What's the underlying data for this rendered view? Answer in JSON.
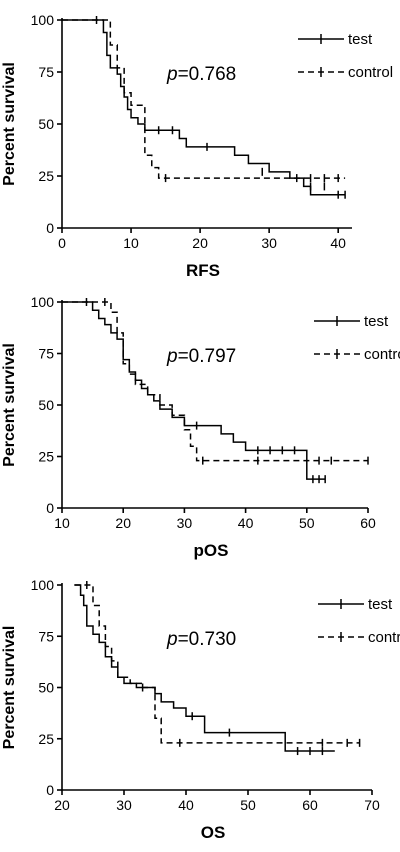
{
  "chart_data": [
    {
      "type": "line",
      "subtype": "kaplan-meier",
      "xlabel": "RFS",
      "ylabel": "Percent survival",
      "xlim": [
        0,
        42
      ],
      "ylim": [
        0,
        100
      ],
      "xticks": [
        0,
        10,
        20,
        30,
        40
      ],
      "yticks": [
        0,
        25,
        50,
        75,
        100
      ],
      "annotation": {
        "prefix": "p",
        "text": "=0.768"
      },
      "legend": {
        "placement": "top-right"
      },
      "series": [
        {
          "name": "test",
          "style": "solid",
          "steps": [
            [
              0,
              100
            ],
            [
              5,
              100
            ],
            [
              6,
              94
            ],
            [
              6.5,
              83
            ],
            [
              7,
              77
            ],
            [
              8,
              74
            ],
            [
              8.5,
              68
            ],
            [
              9,
              63
            ],
            [
              9.5,
              57
            ],
            [
              10,
              53
            ],
            [
              11,
              50
            ],
            [
              12,
              47
            ],
            [
              17,
              43
            ],
            [
              18,
              39
            ],
            [
              25,
              35
            ],
            [
              27,
              31
            ],
            [
              30,
              27
            ],
            [
              33,
              24
            ],
            [
              35,
              20
            ],
            [
              36,
              16
            ],
            [
              41,
              16
            ]
          ],
          "censored": [
            [
              5,
              100
            ],
            [
              14,
              47
            ],
            [
              16,
              47
            ],
            [
              21,
              39
            ],
            [
              29,
              27
            ],
            [
              36,
              20
            ],
            [
              38,
              20
            ],
            [
              40,
              16
            ],
            [
              41,
              16
            ]
          ]
        },
        {
          "name": "control",
          "style": "dashed",
          "steps": [
            [
              0,
              100
            ],
            [
              6,
              100
            ],
            [
              7,
              88
            ],
            [
              8,
              77
            ],
            [
              9,
              65
            ],
            [
              10,
              59
            ],
            [
              12,
              35
            ],
            [
              13,
              29
            ],
            [
              14,
              24
            ],
            [
              41,
              24
            ]
          ],
          "censored": [
            [
              15,
              24
            ],
            [
              34,
              24
            ],
            [
              36,
              24
            ],
            [
              38,
              24
            ],
            [
              40,
              24
            ]
          ]
        }
      ]
    },
    {
      "type": "line",
      "subtype": "kaplan-meier",
      "xlabel": "pOS",
      "ylabel": "Percent survival",
      "xlim": [
        10,
        60
      ],
      "ylim": [
        0,
        100
      ],
      "xticks": [
        10,
        20,
        30,
        40,
        50,
        60
      ],
      "yticks": [
        0,
        25,
        50,
        75,
        100
      ],
      "annotation": {
        "prefix": "p",
        "text": "=0.797"
      },
      "legend": {
        "placement": "top-right"
      },
      "series": [
        {
          "name": "test",
          "style": "solid",
          "steps": [
            [
              10,
              100
            ],
            [
              14,
              100
            ],
            [
              15,
              96
            ],
            [
              16,
              92
            ],
            [
              17,
              89
            ],
            [
              18,
              85
            ],
            [
              19,
              82
            ],
            [
              20,
              72
            ],
            [
              21,
              66
            ],
            [
              22,
              62
            ],
            [
              23,
              58
            ],
            [
              24,
              55
            ],
            [
              25,
              52
            ],
            [
              26,
              48
            ],
            [
              28,
              44
            ],
            [
              30,
              40
            ],
            [
              36,
              36
            ],
            [
              38,
              32
            ],
            [
              40,
              28
            ],
            [
              50,
              14
            ],
            [
              53,
              14
            ]
          ],
          "censored": [
            [
              14,
              100
            ],
            [
              20,
              75
            ],
            [
              32,
              40
            ],
            [
              42,
              28
            ],
            [
              44,
              28
            ],
            [
              46,
              28
            ],
            [
              48,
              28
            ],
            [
              51,
              14
            ],
            [
              52,
              14
            ],
            [
              53,
              14
            ]
          ]
        },
        {
          "name": "control",
          "style": "dashed",
          "steps": [
            [
              10,
              100
            ],
            [
              17,
              100
            ],
            [
              18,
              95
            ],
            [
              19,
              85
            ],
            [
              20,
              70
            ],
            [
              21,
              65
            ],
            [
              22,
              60
            ],
            [
              24,
              55
            ],
            [
              26,
              50
            ],
            [
              28,
              45
            ],
            [
              30,
              38
            ],
            [
              31,
              30
            ],
            [
              32,
              23
            ],
            [
              60,
              23
            ]
          ],
          "censored": [
            [
              17,
              100
            ],
            [
              33,
              23
            ],
            [
              42,
              23
            ],
            [
              52,
              23
            ],
            [
              54,
              23
            ],
            [
              60,
              23
            ]
          ]
        }
      ]
    },
    {
      "type": "line",
      "subtype": "kaplan-meier",
      "xlabel": "OS",
      "ylabel": "Percent survival",
      "xlim": [
        20,
        70
      ],
      "ylim": [
        0,
        100
      ],
      "xticks": [
        20,
        30,
        40,
        50,
        60,
        70
      ],
      "yticks": [
        0,
        25,
        50,
        75,
        100
      ],
      "annotation": {
        "prefix": "p",
        "text": "=0.730"
      },
      "legend": {
        "placement": "top-right"
      },
      "series": [
        {
          "name": "test",
          "style": "solid",
          "steps": [
            [
              22,
              100
            ],
            [
              23,
              95
            ],
            [
              23.5,
              90
            ],
            [
              24,
              80
            ],
            [
              25,
              76
            ],
            [
              26,
              72
            ],
            [
              27,
              65
            ],
            [
              28,
              60
            ],
            [
              29,
              55
            ],
            [
              30,
              52
            ],
            [
              32,
              50
            ],
            [
              35,
              47
            ],
            [
              36,
              43
            ],
            [
              38,
              40
            ],
            [
              40,
              36
            ],
            [
              43,
              28
            ],
            [
              56,
              19
            ],
            [
              64,
              19
            ]
          ],
          "censored": [
            [
              33,
              50
            ],
            [
              41,
              36
            ],
            [
              47,
              28
            ],
            [
              58,
              19
            ],
            [
              60,
              19
            ],
            [
              62,
              19
            ]
          ]
        },
        {
          "name": "control",
          "style": "dashed",
          "steps": [
            [
              22,
              100
            ],
            [
              24,
              100
            ],
            [
              25,
              90
            ],
            [
              26,
              80
            ],
            [
              27,
              70
            ],
            [
              28,
              63
            ],
            [
              29,
              55
            ],
            [
              31,
              52
            ],
            [
              33,
              50
            ],
            [
              35,
              35
            ],
            [
              36,
              23
            ],
            [
              68,
              23
            ]
          ],
          "censored": [
            [
              24,
              100
            ],
            [
              39,
              23
            ],
            [
              62,
              23
            ],
            [
              66,
              23
            ],
            [
              68,
              23
            ]
          ]
        }
      ]
    }
  ]
}
